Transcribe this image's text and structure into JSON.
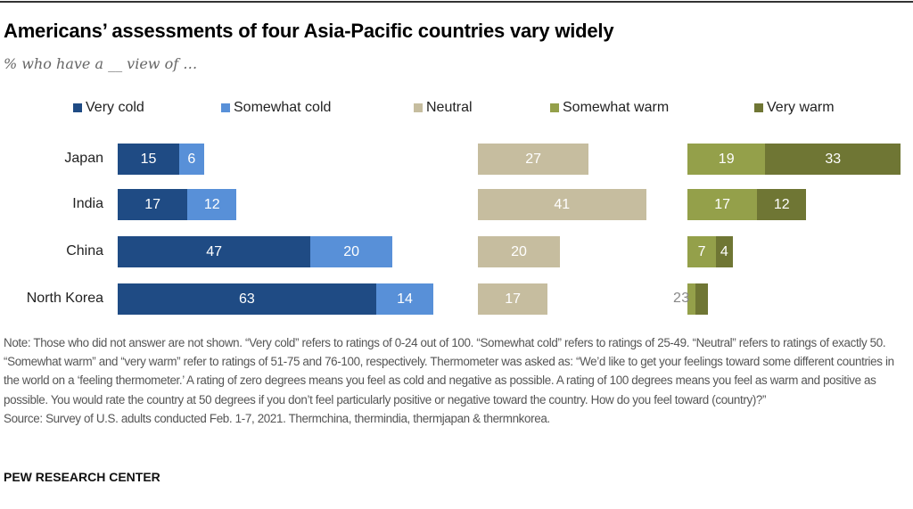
{
  "chart_data": {
    "type": "bar",
    "title": "Americans’ assessments of four Asia-Pacific countries vary widely",
    "subtitle": "% who have a __ view of …",
    "categories": [
      "Japan",
      "India",
      "China",
      "North Korea"
    ],
    "series": [
      {
        "name": "Very cold",
        "color": "#1f4b84",
        "group": "cold",
        "values": [
          15,
          17,
          47,
          63
        ]
      },
      {
        "name": "Somewhat cold",
        "color": "#5890d8",
        "group": "cold",
        "values": [
          6,
          12,
          20,
          14
        ]
      },
      {
        "name": "Neutral",
        "color": "#c6bd9f",
        "group": "neutral",
        "values": [
          27,
          41,
          20,
          17
        ]
      },
      {
        "name": "Somewhat warm",
        "color": "#94a04a",
        "group": "warm",
        "values": [
          19,
          17,
          7,
          2
        ]
      },
      {
        "name": "Very warm",
        "color": "#6f7634",
        "group": "warm",
        "values": [
          33,
          12,
          4,
          3
        ]
      }
    ],
    "legend": "top"
  },
  "note": "Note: Those who did not answer are not shown. “Very cold” refers to ratings of 0-24 out of 100. “Somewhat cold” refers to ratings of 25-49. “Neutral” refers to ratings of exactly 50. “Somewhat warm” and “very warm” refer to ratings of 51-75 and 76-100, respectively. Thermometer was asked as: “We’d like to get your feelings toward some different countries in the world on a ‘feeling thermometer.’ A rating of zero degrees means you feel as cold and negative as possible. A rating of 100 degrees means you feel as warm and positive as possible. You would rate the country at 50 degrees if you don’t feel particularly positive or negative toward the country. How do you feel toward (country)?”",
  "source": "Source: Survey of U.S. adults conducted Feb. 1-7, 2021. Thermchina, thermindia, thermjapan & thermnkorea.",
  "brand": "PEW RESEARCH CENTER"
}
